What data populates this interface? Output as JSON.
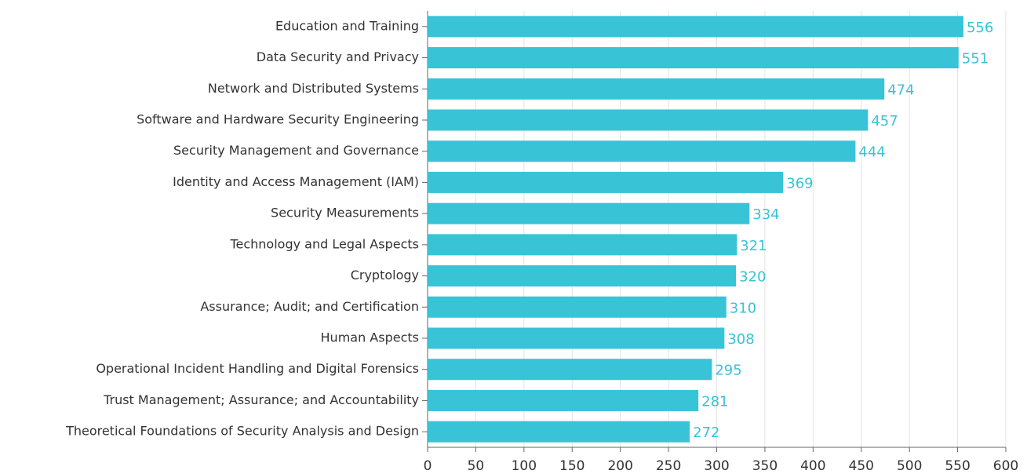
{
  "chart_data": {
    "type": "barh",
    "categories": [
      "Education and Training",
      "Data Security and Privacy",
      "Network and Distributed Systems",
      "Software and Hardware Security Engineering",
      "Security Management and Governance",
      "Identity and Access Management (IAM)",
      "Security Measurements",
      "Technology and Legal Aspects",
      "Cryptology",
      "Assurance; Audit; and Certification",
      "Human Aspects",
      "Operational Incident Handling and Digital Forensics",
      "Trust Management; Assurance; and Accountability",
      "Theoretical Foundations of Security Analysis and Design"
    ],
    "values": [
      556,
      551,
      474,
      457,
      444,
      369,
      334,
      321,
      320,
      310,
      308,
      295,
      281,
      272
    ],
    "color": "#38c3d6",
    "xlim": [
      0,
      600
    ],
    "xticks": [
      0,
      50,
      100,
      150,
      200,
      250,
      300,
      350,
      400,
      450,
      500,
      550,
      600
    ],
    "grid": true
  }
}
